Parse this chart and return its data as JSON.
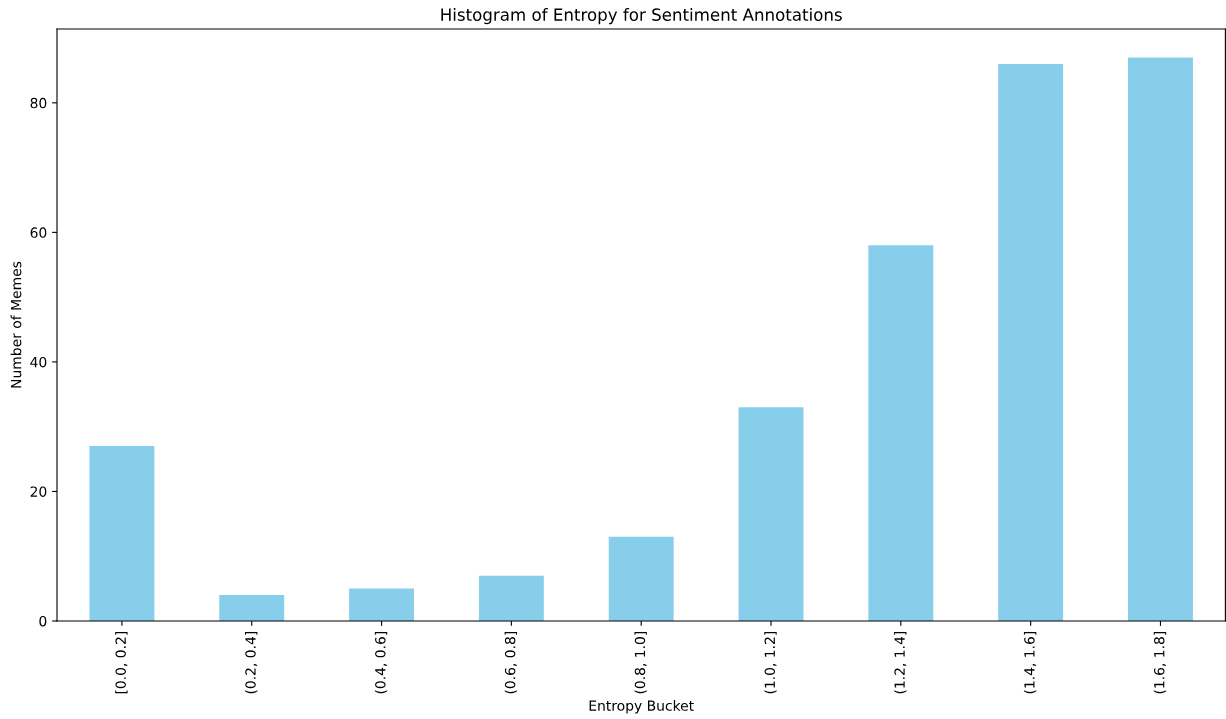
{
  "chart_data": {
    "type": "bar",
    "title": "Histogram of Entropy for Sentiment Annotations",
    "xlabel": "Entropy Bucket",
    "ylabel": "Number of Memes",
    "categories": [
      "[0.0, 0.2]",
      "(0.2, 0.4]",
      "(0.4, 0.6]",
      "(0.6, 0.8]",
      "(0.8, 1.0]",
      "(1.0, 1.2]",
      "(1.2, 1.4]",
      "(1.4, 1.6]",
      "(1.6, 1.8]"
    ],
    "values": [
      27,
      4,
      5,
      7,
      13,
      33,
      58,
      86,
      87
    ],
    "color": "#87ceeb",
    "ylim": [
      0,
      91.4
    ],
    "yticks": [
      0,
      20,
      40,
      60,
      80
    ]
  }
}
